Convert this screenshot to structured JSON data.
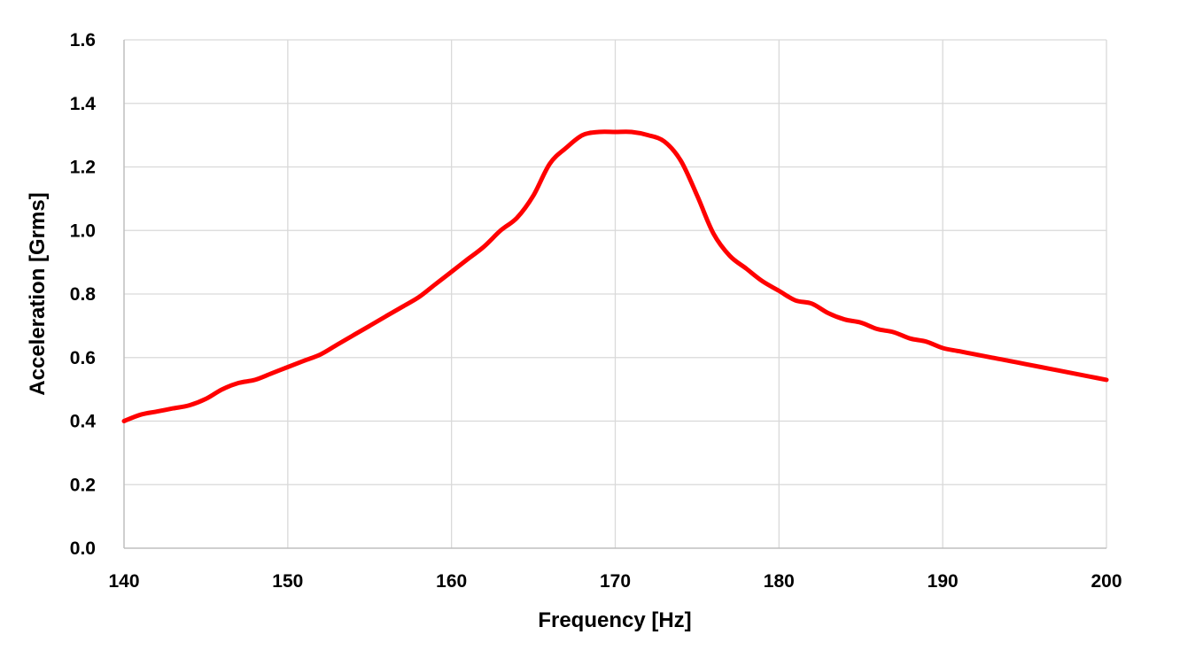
{
  "chart_data": {
    "type": "line",
    "title": "",
    "xlabel": "Frequency [Hz]",
    "ylabel": "Acceleration [Grms]",
    "xlim": [
      140,
      200
    ],
    "ylim": [
      0.0,
      1.6
    ],
    "x_ticks": [
      "140",
      "150",
      "160",
      "170",
      "180",
      "190",
      "200"
    ],
    "y_ticks": [
      "0.0",
      "0.2",
      "0.4",
      "0.6",
      "0.8",
      "1.0",
      "1.2",
      "1.4",
      "1.6"
    ],
    "grid": true,
    "legend": "none",
    "series": [
      {
        "color": "#ff0000",
        "x": [
          140,
          141,
          142,
          143,
          144,
          145,
          146,
          147,
          148,
          149,
          150,
          151,
          152,
          153,
          154,
          155,
          156,
          157,
          158,
          159,
          160,
          161,
          162,
          163,
          164,
          165,
          166,
          167,
          168,
          169,
          170,
          171,
          172,
          173,
          174,
          175,
          176,
          177,
          178,
          179,
          180,
          181,
          182,
          183,
          184,
          185,
          186,
          187,
          188,
          189,
          190,
          191,
          192,
          193,
          194,
          195,
          196,
          197,
          198,
          199,
          200
        ],
        "values": [
          0.4,
          0.42,
          0.43,
          0.44,
          0.45,
          0.47,
          0.5,
          0.52,
          0.53,
          0.55,
          0.57,
          0.59,
          0.61,
          0.64,
          0.67,
          0.7,
          0.73,
          0.76,
          0.79,
          0.83,
          0.87,
          0.91,
          0.95,
          1.0,
          1.04,
          1.11,
          1.21,
          1.26,
          1.3,
          1.31,
          1.31,
          1.31,
          1.3,
          1.28,
          1.22,
          1.11,
          0.99,
          0.92,
          0.88,
          0.84,
          0.81,
          0.78,
          0.77,
          0.74,
          0.72,
          0.71,
          0.69,
          0.68,
          0.66,
          0.65,
          0.63,
          0.62,
          0.61,
          0.6,
          0.59,
          0.58,
          0.57,
          0.56,
          0.55,
          0.54,
          0.53
        ]
      }
    ]
  }
}
